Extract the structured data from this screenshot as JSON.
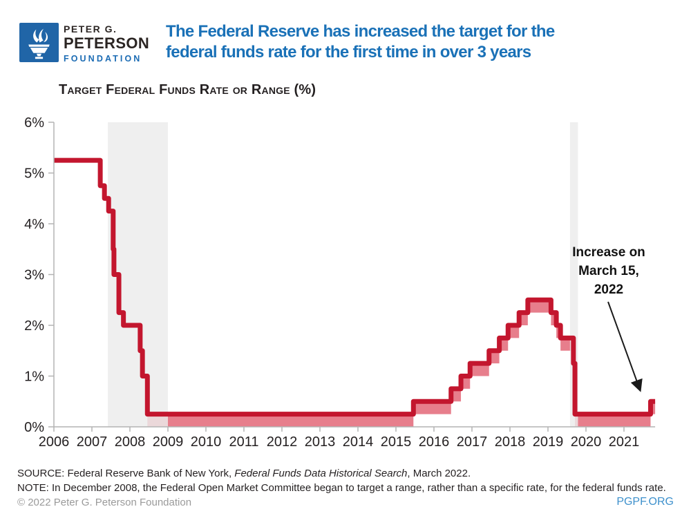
{
  "header": {
    "logo": {
      "line1": "PETER G.",
      "line2": "PETERSON",
      "line3": "FOUNDATION"
    },
    "title": "The Federal Reserve has increased the target for the\nfederal funds rate for the first time in over 3 years"
  },
  "chart_data": {
    "type": "area",
    "title": "Target Federal Funds Rate or Range (%)",
    "ylim": [
      0,
      6
    ],
    "y_tick_labels": [
      "0%",
      "1%",
      "2%",
      "3%",
      "4%",
      "5%",
      "6%"
    ],
    "x_tick_labels": [
      "2006",
      "2007",
      "2008",
      "2009",
      "2010",
      "2011",
      "2012",
      "2013",
      "2014",
      "2015",
      "2016",
      "2017",
      "2018",
      "2019",
      "2020",
      "2021"
    ],
    "x_domain": [
      2006.5,
      2022.32
    ],
    "grid": false,
    "legend_position": "none",
    "series_steps": [
      {
        "date": "2006-07",
        "t": 2006.5,
        "lower": 5.25,
        "upper": 5.25
      },
      {
        "date": "2007-09-18",
        "t": 2007.72,
        "lower": 4.75,
        "upper": 4.75
      },
      {
        "date": "2007-10-31",
        "t": 2007.83,
        "lower": 4.5,
        "upper": 4.5
      },
      {
        "date": "2007-12-11",
        "t": 2007.94,
        "lower": 4.25,
        "upper": 4.25
      },
      {
        "date": "2008-01-22",
        "t": 2008.06,
        "lower": 3.5,
        "upper": 3.5
      },
      {
        "date": "2008-01-30",
        "t": 2008.08,
        "lower": 3.0,
        "upper": 3.0
      },
      {
        "date": "2008-03-18",
        "t": 2008.21,
        "lower": 2.25,
        "upper": 2.25
      },
      {
        "date": "2008-04-30",
        "t": 2008.33,
        "lower": 2.0,
        "upper": 2.0
      },
      {
        "date": "2008-10-08",
        "t": 2008.77,
        "lower": 1.5,
        "upper": 1.5
      },
      {
        "date": "2008-10-29",
        "t": 2008.83,
        "lower": 1.0,
        "upper": 1.0
      },
      {
        "date": "2008-12-16",
        "t": 2008.96,
        "lower": 0.0,
        "upper": 0.25
      },
      {
        "date": "2015-12-17",
        "t": 2015.96,
        "lower": 0.25,
        "upper": 0.5
      },
      {
        "date": "2016-12-15",
        "t": 2016.95,
        "lower": 0.5,
        "upper": 0.75
      },
      {
        "date": "2017-03-16",
        "t": 2017.21,
        "lower": 0.75,
        "upper": 1.0
      },
      {
        "date": "2017-06-15",
        "t": 2017.45,
        "lower": 1.0,
        "upper": 1.25
      },
      {
        "date": "2017-12-14",
        "t": 2017.95,
        "lower": 1.25,
        "upper": 1.5
      },
      {
        "date": "2018-03-22",
        "t": 2018.22,
        "lower": 1.5,
        "upper": 1.75
      },
      {
        "date": "2018-06-14",
        "t": 2018.45,
        "lower": 1.75,
        "upper": 2.0
      },
      {
        "date": "2018-09-27",
        "t": 2018.74,
        "lower": 2.0,
        "upper": 2.25
      },
      {
        "date": "2018-12-20",
        "t": 2018.97,
        "lower": 2.25,
        "upper": 2.5
      },
      {
        "date": "2019-08-01",
        "t": 2019.58,
        "lower": 2.0,
        "upper": 2.25
      },
      {
        "date": "2019-09-19",
        "t": 2019.72,
        "lower": 1.75,
        "upper": 2.0
      },
      {
        "date": "2019-10-31",
        "t": 2019.83,
        "lower": 1.5,
        "upper": 1.75
      },
      {
        "date": "2020-03-03",
        "t": 2020.17,
        "lower": 1.0,
        "upper": 1.25
      },
      {
        "date": "2020-03-16",
        "t": 2020.21,
        "lower": 0.0,
        "upper": 0.25
      },
      {
        "date": "2022-03-15",
        "t": 2022.2,
        "lower": 0.25,
        "upper": 0.5
      }
    ],
    "recessions": [
      {
        "label": "recession 2007-2009",
        "t_start": 2007.92,
        "t_end": 2009.5
      },
      {
        "label": "recession 2020",
        "t_start": 2020.08,
        "t_end": 2020.29
      }
    ],
    "annotation": {
      "text": "Increase on\nMarch 15,\n2022"
    },
    "colors": {
      "line": "#c3162e",
      "band": "#e77e8c",
      "recession": "#ebebeb",
      "axis": "#b3b3b3",
      "text": "#231f20",
      "title_blue": "#1a71b7",
      "link_blue": "#3d90cc"
    }
  },
  "source": {
    "prefix": "SOURCE: Federal Reserve Bank of New York, ",
    "italic": "Federal Funds Data Historical Search",
    "suffix": ", March 2022."
  },
  "note": "NOTE: In December 2008, the Federal Open Market Committee began to target a range, rather than a specific rate, for the federal funds rate.",
  "footer": {
    "copyright": "© 2022 Peter G. Peterson Foundation",
    "site": "PGPF.ORG"
  }
}
